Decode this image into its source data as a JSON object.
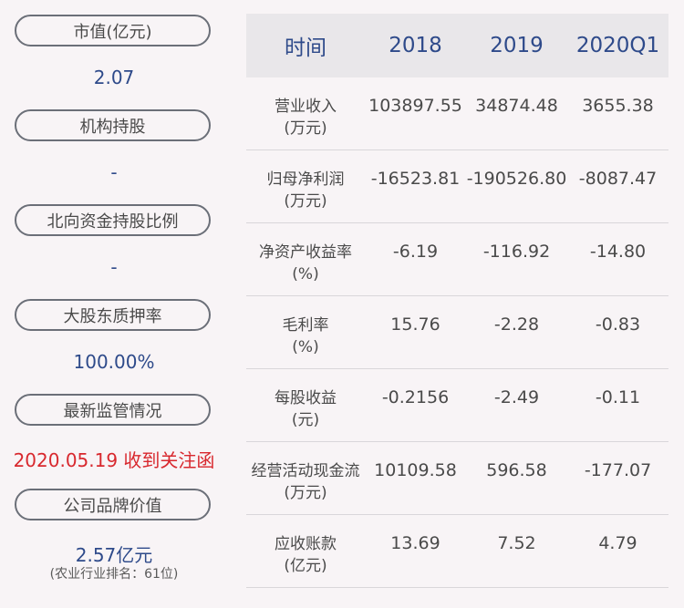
{
  "left": {
    "items": [
      {
        "label": "市值(亿元)",
        "value": "2.07"
      },
      {
        "label": "机构持股",
        "value": "-"
      },
      {
        "label": "北向资金持股比例",
        "value": "-"
      },
      {
        "label": "大股东质押率",
        "value": "100.00%"
      },
      {
        "label": "最新监管情况",
        "value": "2020.05.19 收到关注函"
      },
      {
        "label": "公司品牌价值",
        "value": "2.57亿元",
        "note": "(农业行业排名：61位)"
      }
    ]
  },
  "table": {
    "headers": [
      "时间",
      "2018",
      "2019",
      "2020Q1"
    ],
    "rows": [
      {
        "name": "营业收入",
        "unit": "(万元)",
        "values": [
          "103897.55",
          "34874.48",
          "3655.38"
        ]
      },
      {
        "name": "归母净利润",
        "unit": "(万元)",
        "values": [
          "-16523.81",
          "-190526.80",
          "-8087.47"
        ]
      },
      {
        "name": "净资产收益率",
        "unit": "(%)",
        "values": [
          "-6.19",
          "-116.92",
          "-14.80"
        ]
      },
      {
        "name": "毛利率",
        "unit": "(%)",
        "values": [
          "15.76",
          "-2.28",
          "-0.83"
        ]
      },
      {
        "name": "每股收益",
        "unit": "(元)",
        "values": [
          "-0.2156",
          "-2.49",
          "-0.11"
        ]
      },
      {
        "name": "经营活动现金流",
        "unit": "(万元)",
        "values": [
          "10109.58",
          "596.58",
          "-177.07"
        ]
      },
      {
        "name": "应收账款",
        "unit": "(亿元)",
        "values": [
          "13.69",
          "7.52",
          "4.79"
        ]
      }
    ]
  },
  "colors": {
    "value_blue": "#2e4a8a",
    "alert_red": "#d8282e",
    "header_bg": "#e9e7ea"
  }
}
